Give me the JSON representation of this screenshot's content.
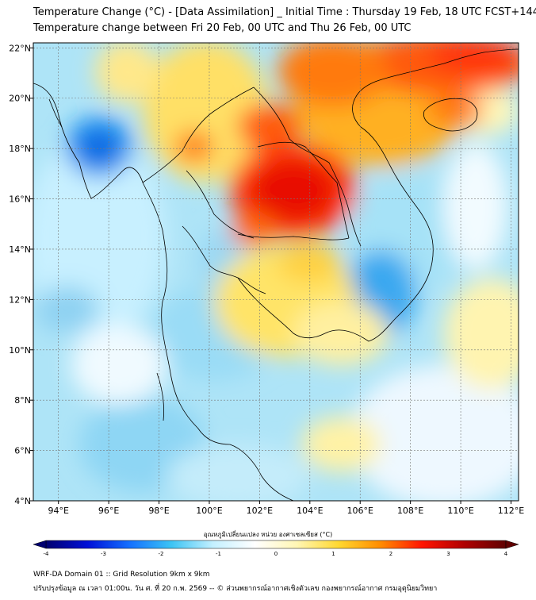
{
  "title": {
    "line1": "Temperature Change (°C) - [Data Assimilation] _ Initial Time : Thursday 19 Feb, 18 UTC FCST+144",
    "line2": "Temperature change between Fri 20 Feb, 00 UTC and Thu 26 Feb, 00 UTC"
  },
  "map": {
    "lon_range": [
      93,
      112.3
    ],
    "lat_range": [
      4,
      22.2
    ],
    "x_ticks": [
      "94°E",
      "96°E",
      "98°E",
      "100°E",
      "102°E",
      "104°E",
      "106°E",
      "108°E",
      "110°E",
      "112°E"
    ],
    "x_tick_values": [
      94,
      96,
      98,
      100,
      102,
      104,
      106,
      108,
      110,
      112
    ],
    "y_ticks": [
      "22°N",
      "20°N",
      "18°N",
      "16°N",
      "14°N",
      "12°N",
      "10°N",
      "8°N",
      "6°N",
      "4°N"
    ],
    "y_tick_values": [
      22,
      20,
      18,
      16,
      14,
      12,
      10,
      8,
      6,
      4
    ],
    "grid": true
  },
  "colorbar": {
    "title": "อุณหภูมิเปลี่ยนแปลง หน่วย องศาเซลเซียส (°C)",
    "range": [
      -4,
      4
    ],
    "ticks": [
      "-4",
      "-3",
      "-2",
      "-1",
      "0",
      "1",
      "2",
      "3",
      "4"
    ],
    "tick_values": [
      -4,
      -3,
      -2,
      -1,
      0,
      1,
      2,
      3,
      4
    ],
    "colors": [
      "#000070",
      "#0010d8",
      "#1470ff",
      "#3cc4f4",
      "#c4f0ff",
      "#ffffff",
      "#fff6b4",
      "#ffd830",
      "#ff8c00",
      "#ff1400",
      "#b00000",
      "#600000"
    ]
  },
  "footer": {
    "line1": "WRF-DA Domain 01 :: Grid Resolution 9km x 9km",
    "line2": "ปรับปรุงข้อมูล ณ เวลา 01:00น. วัน ศ. ที่ 20 ก.พ. 2569 -- © ส่วนพยากรณ์อากาศเชิงตัวเลข กองพยากรณ์อากาศ กรมอุตุนิยมวิทยา"
  }
}
